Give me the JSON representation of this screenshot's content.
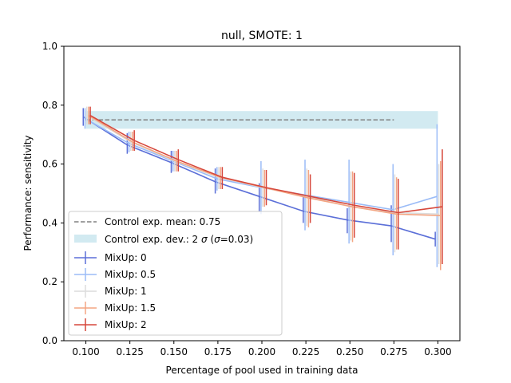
{
  "chart_data": {
    "type": "line",
    "title": "null, SMOTE: 1",
    "xlabel": "Percentage of pool used in training data",
    "ylabel": "Performance: sensitivity",
    "xlim": [
      0.0875,
      0.3125
    ],
    "ylim": [
      0.0,
      1.0
    ],
    "xticks": [
      "0.100",
      "0.125",
      "0.150",
      "0.175",
      "0.200",
      "0.225",
      "0.250",
      "0.275",
      "0.300"
    ],
    "yticks": [
      "0.0",
      "0.2",
      "0.4",
      "0.6",
      "0.8",
      "1.0"
    ],
    "x": [
      0.1,
      0.125,
      0.15,
      0.175,
      0.2,
      0.225,
      0.25,
      0.275,
      0.3
    ],
    "control": {
      "mean": 0.75,
      "band_low": 0.72,
      "band_high": 0.78,
      "x_range": [
        0.1,
        0.3
      ],
      "mean_label": "Control exp. mean: 0.75",
      "band_label_prefix": "Control exp. dev.: 2 ",
      "band_label_sigma": "σ",
      "band_label_suffix": " (",
      "band_label_sigma2": "σ",
      "band_label_end": "=0.03)",
      "mean_color": "#808080",
      "band_color": "#add8e6"
    },
    "series": [
      {
        "name": "MixUp: 0",
        "color": "#5b6fd8",
        "offset": -0.0015,
        "values": [
          0.76,
          0.665,
          0.605,
          0.54,
          0.49,
          0.44,
          0.41,
          0.39,
          0.345
        ],
        "err": [
          [
            0.73,
            0.79
          ],
          [
            0.635,
            0.705
          ],
          [
            0.57,
            0.645
          ],
          [
            0.5,
            0.585
          ],
          [
            0.44,
            0.535
          ],
          [
            0.4,
            0.49
          ],
          [
            0.365,
            0.45
          ],
          [
            0.335,
            0.46
          ],
          [
            0.32,
            0.37
          ]
        ]
      },
      {
        "name": "MixUp: 0.5",
        "color": "#9bbcf7",
        "offset": -0.0005,
        "values": [
          0.755,
          0.67,
          0.61,
          0.55,
          0.52,
          0.495,
          0.47,
          0.445,
          0.49
        ],
        "err": [
          [
            0.72,
            0.79
          ],
          [
            0.64,
            0.71
          ],
          [
            0.575,
            0.645
          ],
          [
            0.51,
            0.59
          ],
          [
            0.43,
            0.61
          ],
          [
            0.375,
            0.615
          ],
          [
            0.33,
            0.615
          ],
          [
            0.29,
            0.6
          ],
          [
            0.25,
            0.735
          ]
        ]
      },
      {
        "name": "MixUp: 1",
        "color": "#dcdcdc",
        "offset": 0.0005,
        "values": [
          0.765,
          0.675,
          0.61,
          0.555,
          0.52,
          0.49,
          0.455,
          0.435,
          0.43
        ],
        "err": [
          [
            0.735,
            0.795
          ],
          [
            0.645,
            0.71
          ],
          [
            0.575,
            0.645
          ],
          [
            0.515,
            0.59
          ],
          [
            0.455,
            0.585
          ],
          [
            0.39,
            0.585
          ],
          [
            0.34,
            0.575
          ],
          [
            0.3,
            0.565
          ],
          [
            0.26,
            0.6
          ]
        ]
      },
      {
        "name": "MixUp: 1.5",
        "color": "#f4a582",
        "offset": 0.0015,
        "values": [
          0.765,
          0.675,
          0.61,
          0.555,
          0.52,
          0.485,
          0.455,
          0.43,
          0.425
        ],
        "err": [
          [
            0.735,
            0.795
          ],
          [
            0.645,
            0.71
          ],
          [
            0.575,
            0.645
          ],
          [
            0.515,
            0.59
          ],
          [
            0.455,
            0.58
          ],
          [
            0.385,
            0.58
          ],
          [
            0.335,
            0.575
          ],
          [
            0.31,
            0.555
          ],
          [
            0.24,
            0.61
          ]
        ]
      },
      {
        "name": "MixUp: 2",
        "color": "#d6473b",
        "offset": 0.0025,
        "values": [
          0.765,
          0.68,
          0.615,
          0.555,
          0.52,
          0.49,
          0.46,
          0.435,
          0.455
        ],
        "err": [
          [
            0.735,
            0.795
          ],
          [
            0.645,
            0.715
          ],
          [
            0.575,
            0.65
          ],
          [
            0.515,
            0.59
          ],
          [
            0.46,
            0.58
          ],
          [
            0.4,
            0.565
          ],
          [
            0.35,
            0.57
          ],
          [
            0.31,
            0.55
          ],
          [
            0.26,
            0.65
          ]
        ]
      }
    ],
    "legend_position": "lower-left",
    "grid": false
  }
}
